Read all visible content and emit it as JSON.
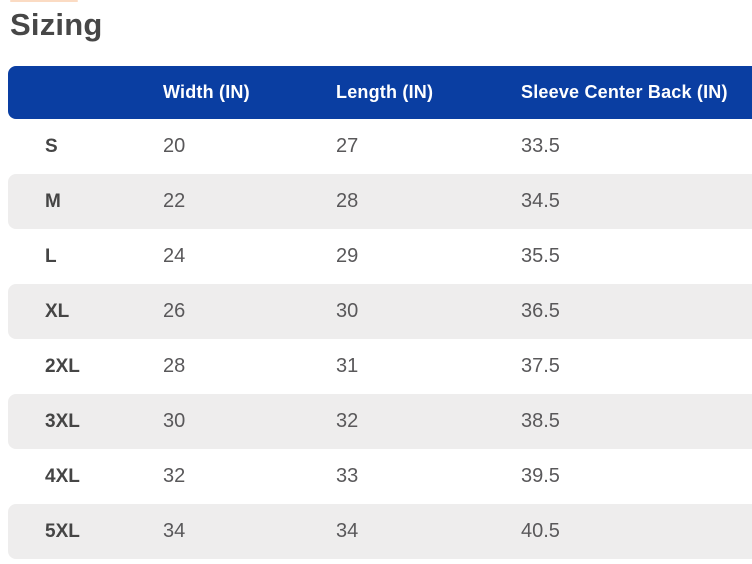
{
  "page": {
    "title": "Sizing"
  },
  "colors": {
    "header_bg": "#0A3EA2",
    "row_alt_bg": "#EEEDED",
    "title_text": "#474747",
    "label_text": "#454545",
    "value_text": "#59585A",
    "header_text": "#FFFFFF"
  },
  "table": {
    "columns": [
      "",
      "Width (IN)",
      "Length (IN)",
      "Sleeve Center Back (IN)"
    ],
    "rows": [
      {
        "size": "S",
        "width": "20",
        "length": "27",
        "sleeve": "33.5"
      },
      {
        "size": "M",
        "width": "22",
        "length": "28",
        "sleeve": "34.5"
      },
      {
        "size": "L",
        "width": "24",
        "length": "29",
        "sleeve": "35.5"
      },
      {
        "size": "XL",
        "width": "26",
        "length": "30",
        "sleeve": "36.5"
      },
      {
        "size": "2XL",
        "width": "28",
        "length": "31",
        "sleeve": "37.5"
      },
      {
        "size": "3XL",
        "width": "30",
        "length": "32",
        "sleeve": "38.5"
      },
      {
        "size": "4XL",
        "width": "32",
        "length": "33",
        "sleeve": "39.5"
      },
      {
        "size": "5XL",
        "width": "34",
        "length": "34",
        "sleeve": "40.5"
      }
    ]
  }
}
